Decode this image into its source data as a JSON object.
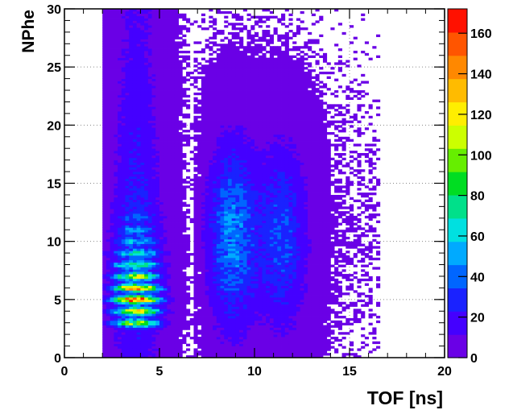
{
  "chart_data": {
    "type": "heatmap",
    "title": "",
    "xlabel": "TOF [ns]",
    "ylabel": "NPhe",
    "xlim": [
      0,
      20
    ],
    "ylim": [
      0,
      30
    ],
    "x_ticks": [
      "0",
      "5",
      "10",
      "15",
      "20"
    ],
    "y_ticks": [
      "0",
      "5",
      "10",
      "15",
      "20",
      "25",
      "30"
    ],
    "colorbar": {
      "range": [
        0,
        172
      ],
      "ticks": [
        "0",
        "20",
        "40",
        "60",
        "80",
        "100",
        "120",
        "140",
        "160"
      ],
      "palette": [
        "#6a00e6",
        "#4400ff",
        "#1a22ff",
        "#0066ff",
        "#00aaff",
        "#00e0e0",
        "#00e08a",
        "#00dd22",
        "#66ee00",
        "#ccff00",
        "#ffee00",
        "#ffbb00",
        "#ff8800",
        "#ff5500",
        "#ff1100"
      ]
    },
    "grid": true,
    "bins": {
      "x_width": 0.2,
      "y_width": 0.2
    },
    "density_model": {
      "prompt_peak_tof_ns": 3.8,
      "prompt_tof_range_ns": [
        2.0,
        7.0
      ],
      "peak_count": 172,
      "photoelectron_band_nphe": [
        3,
        4,
        5,
        6,
        7,
        8,
        9,
        10,
        11,
        12
      ],
      "delayed_components_tof_ns": [
        8.8,
        11.5
      ],
      "delayed_tof_range_ns": [
        7.2,
        14.0
      ]
    }
  }
}
